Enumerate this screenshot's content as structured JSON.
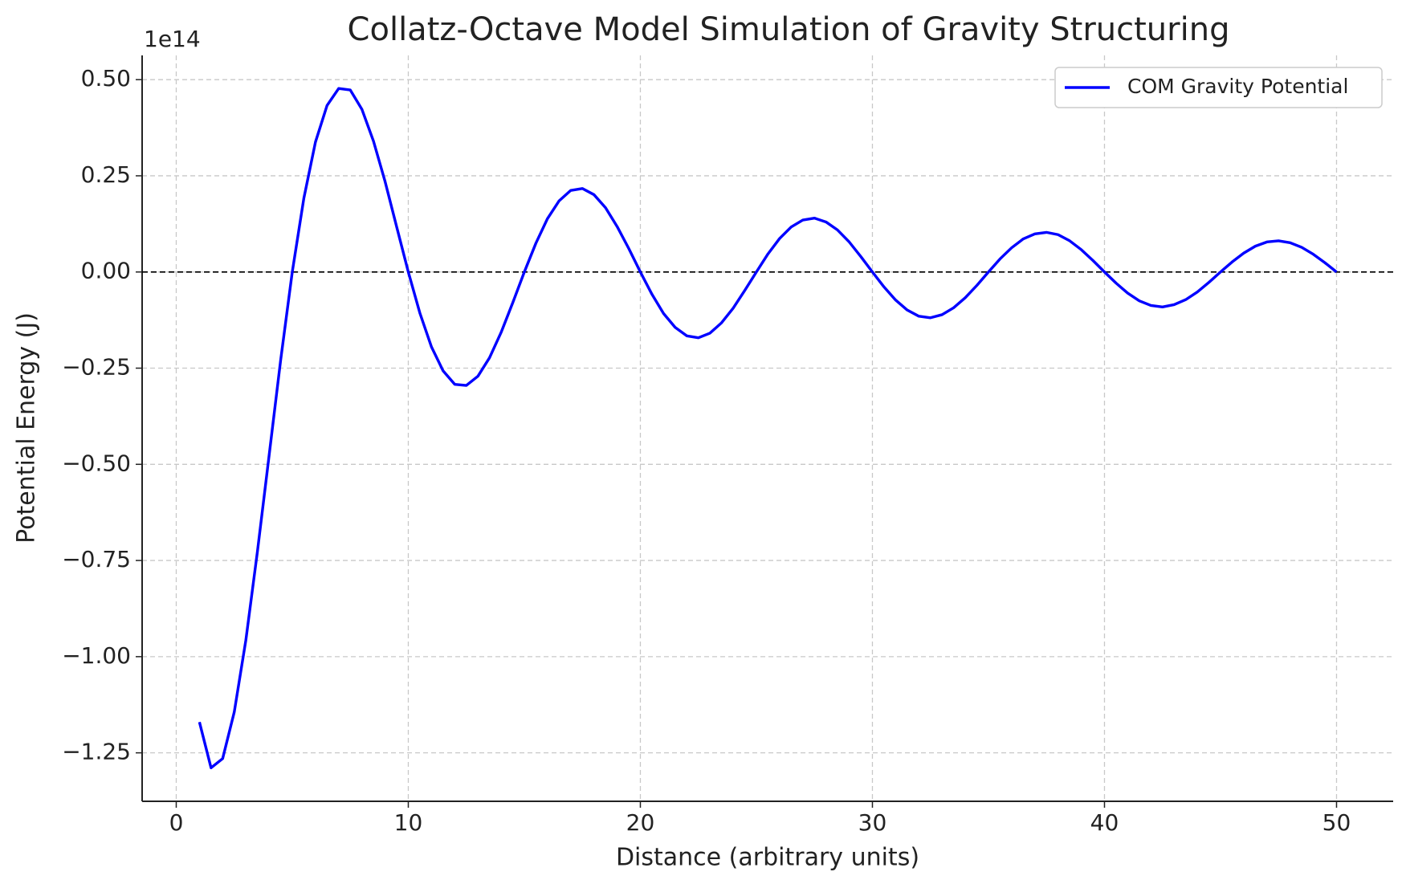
{
  "chart_data": {
    "type": "line",
    "title": "Collatz-Octave Model Simulation of Gravity Structuring",
    "x_label": "Distance (arbitrary units)",
    "y_label": "Potential Energy (J)",
    "y_offset_label": "1e14",
    "x": [
      1,
      1.5,
      2,
      2.5,
      3,
      3.5,
      4,
      4.5,
      5,
      5.5,
      6,
      6.5,
      7,
      7.5,
      8,
      8.5,
      9,
      9.5,
      10,
      10.5,
      11,
      11.5,
      12,
      12.5,
      13,
      13.5,
      14,
      14.5,
      15,
      15.5,
      16,
      16.5,
      17,
      17.5,
      18,
      18.5,
      19,
      19.5,
      20,
      20.5,
      21,
      21.5,
      22,
      22.5,
      23,
      23.5,
      24,
      24.5,
      25,
      25.5,
      26,
      26.5,
      27,
      27.5,
      28,
      28.5,
      29,
      29.5,
      30,
      30.5,
      31,
      31.5,
      32,
      32.5,
      33,
      33.5,
      34,
      34.5,
      35,
      35.5,
      36,
      36.5,
      37,
      37.5,
      38,
      38.5,
      39,
      39.5,
      40,
      40.5,
      41,
      41.5,
      42,
      42.5,
      43,
      43.5,
      44,
      44.5,
      45,
      45.5,
      46,
      46.5,
      47,
      47.5,
      48,
      48.5,
      49,
      49.5,
      50
    ],
    "series": [
      {
        "name": "COM Gravity Potential",
        "color": "#0000ff",
        "values": [
          -1.17,
          -1.289,
          -1.265,
          -1.144,
          -0.957,
          -0.726,
          -0.478,
          -0.229,
          0,
          0.192,
          0.338,
          0.433,
          0.477,
          0.473,
          0.423,
          0.34,
          0.235,
          0.117,
          0,
          -0.107,
          -0.195,
          -0.257,
          -0.292,
          -0.295,
          -0.271,
          -0.223,
          -0.157,
          -0.08,
          0,
          0.075,
          0.139,
          0.185,
          0.212,
          0.217,
          0.201,
          0.167,
          0.118,
          0.061,
          0,
          -0.058,
          -0.108,
          -0.144,
          -0.166,
          -0.171,
          -0.159,
          -0.132,
          -0.094,
          -0.048,
          0,
          0.047,
          0.087,
          0.117,
          0.135,
          0.14,
          0.13,
          0.109,
          0.078,
          0.04,
          0,
          -0.039,
          -0.073,
          -0.099,
          -0.115,
          -0.119,
          -0.111,
          -0.093,
          -0.067,
          -0.035,
          0,
          0.034,
          0.063,
          0.086,
          0.099,
          0.103,
          0.097,
          0.081,
          0.058,
          0.03,
          0,
          -0.029,
          -0.055,
          -0.075,
          -0.087,
          -0.091,
          -0.085,
          -0.072,
          -0.052,
          -0.027,
          0,
          0.026,
          0.049,
          0.067,
          0.078,
          0.081,
          0.076,
          0.064,
          0.046,
          0.024,
          0
        ]
      }
    ],
    "hline": 0,
    "xlim": [
      -1.47,
      52.44
    ],
    "ylim": [
      -1.376,
      0.563
    ],
    "xticks": [
      0,
      10,
      20,
      30,
      40,
      50
    ],
    "yticks": [
      {
        "value": -1.25,
        "label": "−1.25"
      },
      {
        "value": -1.0,
        "label": "−1.00"
      },
      {
        "value": -0.75,
        "label": "−0.75"
      },
      {
        "value": -0.5,
        "label": "−0.50"
      },
      {
        "value": -0.25,
        "label": "−0.25"
      },
      {
        "value": 0,
        "label": "0.00"
      },
      {
        "value": 0.25,
        "label": "0.25"
      },
      {
        "value": 0.5,
        "label": "0.50"
      }
    ],
    "grid": true,
    "legend": "upper right"
  }
}
